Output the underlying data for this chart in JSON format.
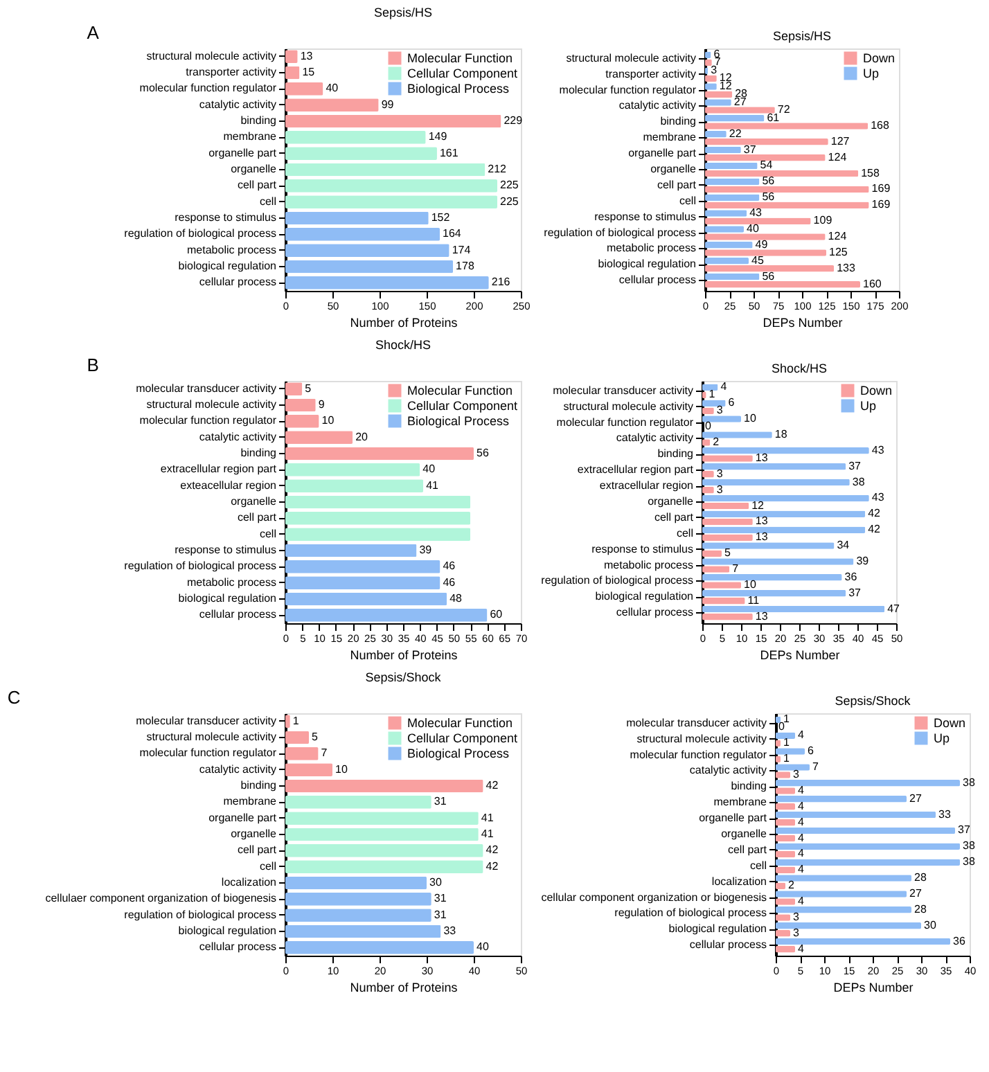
{
  "chart_data": [
    {
      "type": "bar",
      "orientation": "horizontal",
      "title": "Sepsis/HS",
      "xlabel": "Number of Proteins",
      "annotations": [
        "A"
      ],
      "categories": [
        "structural molecule activity",
        "transporter activity",
        "molecular function regulator",
        "catalytic activity",
        "binding",
        "membrane",
        "organelle part",
        "organelle",
        "cell part",
        "cell",
        "response to stimulus",
        "regulation of biological process",
        "metabolic process",
        "biological regulation",
        "cellular process"
      ],
      "series": [
        {
          "name": "Molecular Function",
          "color": "#f9a0a0",
          "values": [
            13,
            15,
            40,
            99,
            229,
            null,
            null,
            null,
            null,
            null,
            null,
            null,
            null,
            null,
            null
          ]
        },
        {
          "name": "Cellular Component",
          "color": "#b0f5da",
          "values": [
            null,
            null,
            null,
            null,
            null,
            149,
            161,
            212,
            225,
            225,
            null,
            null,
            null,
            null,
            null
          ]
        },
        {
          "name": "Biological Process",
          "color": "#8fbcf5",
          "values": [
            null,
            null,
            null,
            null,
            null,
            null,
            null,
            null,
            null,
            null,
            152,
            164,
            174,
            178,
            216
          ]
        }
      ],
      "xlim": [
        0,
        250
      ],
      "xticks": [
        0,
        50,
        100,
        150,
        200,
        250
      ],
      "data_labels": true,
      "legend": "top right",
      "grid": false
    },
    {
      "type": "bar",
      "orientation": "horizontal",
      "title": "Sepsis/HS",
      "xlabel": "DEPs Number",
      "categories": [
        "structural molecule activity",
        "transporter activity",
        "molecular function regulator",
        "catalytic activity",
        "binding",
        "membrane",
        "organelle part",
        "organelle",
        "cell part",
        "cell",
        "response to stimulus",
        "regulation of biological process",
        "metabolic process",
        "biological regulation",
        "cellular process"
      ],
      "series": [
        {
          "name": "Down",
          "color": "#f9a0a0",
          "values": [
            7,
            12,
            28,
            72,
            168,
            127,
            124,
            158,
            169,
            169,
            109,
            124,
            125,
            133,
            160
          ]
        },
        {
          "name": "Up",
          "color": "#8fbcf5",
          "values": [
            6,
            3,
            12,
            27,
            61,
            22,
            37,
            54,
            56,
            56,
            43,
            40,
            49,
            45,
            56
          ]
        }
      ],
      "xlim": [
        0,
        200
      ],
      "xticks": [
        0,
        25,
        50,
        75,
        100,
        125,
        150,
        175,
        200
      ],
      "data_labels": true,
      "legend": "top right",
      "grid": false
    },
    {
      "type": "bar",
      "orientation": "horizontal",
      "title": "Shock/HS",
      "xlabel": "Number of Proteins",
      "annotations": [
        "B"
      ],
      "categories": [
        "molecular transducer activity",
        "structural molecule activity",
        "molecular function regulator",
        "catalytic activity",
        "binding",
        "extracellular region part",
        "exteacellular region",
        "organelle",
        "cell part",
        "cell",
        "response to stimulus",
        "regulation of biological process",
        "metabolic process",
        "biological regulation",
        "cellular process"
      ],
      "series": [
        {
          "name": "Molecular Function",
          "color": "#f9a0a0",
          "values": [
            5,
            9,
            10,
            20,
            56,
            null,
            null,
            null,
            null,
            null,
            null,
            null,
            null,
            null,
            null
          ],
          "value_labels": [
            "5",
            "9",
            "10",
            "20",
            "56",
            null,
            null,
            null,
            null,
            null,
            null,
            null,
            null,
            null,
            null
          ]
        },
        {
          "name": "Cellular Component",
          "color": "#b0f5da",
          "values": [
            null,
            null,
            null,
            null,
            null,
            40,
            41,
            55,
            55,
            55,
            null,
            null,
            null,
            null,
            null
          ],
          "value_labels": [
            null,
            null,
            null,
            null,
            null,
            "40",
            "41",
            null,
            null,
            null,
            null,
            null,
            null,
            null,
            null
          ]
        },
        {
          "name": "Biological Process",
          "color": "#8fbcf5",
          "values": [
            null,
            null,
            null,
            null,
            null,
            null,
            null,
            null,
            null,
            null,
            39,
            46,
            46,
            48,
            60
          ],
          "value_labels": [
            null,
            null,
            null,
            null,
            null,
            null,
            null,
            null,
            null,
            null,
            "39",
            "46",
            "46",
            "48",
            "60"
          ]
        }
      ],
      "xlim": [
        0,
        70
      ],
      "xticks": [
        0,
        5,
        10,
        15,
        20,
        25,
        30,
        35,
        40,
        45,
        50,
        55,
        60,
        65,
        70
      ],
      "legend": "top right",
      "grid": false
    },
    {
      "type": "bar",
      "orientation": "horizontal",
      "title": "Shock/HS",
      "xlabel": "DEPs Number",
      "categories": [
        "molecular transducer activity",
        "structural molecule activity",
        "molecular function regulator",
        "catalytic activity",
        "binding",
        "extracellular region part",
        "extracellular region",
        "organelle",
        "cell part",
        "cell",
        "response to stimulus",
        "metabolic process",
        "regulation of biological process",
        "biological regulation",
        "cellular process"
      ],
      "series": [
        {
          "name": "Down",
          "color": "#f9a0a0",
          "values": [
            1,
            3,
            0,
            2,
            13,
            3,
            3,
            12,
            13,
            13,
            5,
            7,
            10,
            11,
            13
          ]
        },
        {
          "name": "Up",
          "color": "#8fbcf5",
          "values": [
            4,
            6,
            10,
            18,
            43,
            37,
            38,
            43,
            42,
            42,
            34,
            39,
            36,
            37,
            47
          ]
        }
      ],
      "xlim": [
        0,
        50
      ],
      "xticks": [
        0,
        5,
        10,
        15,
        20,
        25,
        30,
        35,
        40,
        45,
        50
      ],
      "data_labels": true,
      "legend": "top right",
      "grid": false
    },
    {
      "type": "bar",
      "orientation": "horizontal",
      "title": "Sepsis/Shock",
      "xlabel": "Number of Proteins",
      "annotations": [
        "C"
      ],
      "categories": [
        "molecular transducer activity",
        "structural molecule activity",
        "molecular function regulator",
        "catalytic activity",
        "binding",
        "membrane",
        "organelle part",
        "organelle",
        "cell part",
        "cell",
        "localization",
        "cellulaer component organization of biogenesis",
        "regulation of biological process",
        "biological regulation",
        "cellular process"
      ],
      "series": [
        {
          "name": "Molecular Function",
          "color": "#f9a0a0",
          "values": [
            1,
            5,
            7,
            10,
            42,
            null,
            null,
            null,
            null,
            null,
            null,
            null,
            null,
            null,
            null
          ]
        },
        {
          "name": "Cellular Component",
          "color": "#b0f5da",
          "values": [
            null,
            null,
            null,
            null,
            null,
            31,
            41,
            41,
            42,
            42,
            null,
            null,
            null,
            null,
            null
          ]
        },
        {
          "name": "Biological Process",
          "color": "#8fbcf5",
          "values": [
            null,
            null,
            null,
            null,
            null,
            null,
            null,
            null,
            null,
            null,
            30,
            31,
            31,
            33,
            40
          ]
        }
      ],
      "xlim": [
        0,
        50
      ],
      "xticks": [
        0,
        10,
        20,
        30,
        40,
        50
      ],
      "data_labels": true,
      "legend": "top right",
      "grid": false
    },
    {
      "type": "bar",
      "orientation": "horizontal",
      "title": "Sepsis/Shock",
      "xlabel": "DEPs Number",
      "categories": [
        "molecular transducer activity",
        "structural molecule activity",
        "molecular function regulator",
        "catalytic activity",
        "binding",
        "membrane",
        "organelle part",
        "organelle",
        "cell part",
        "cell",
        "localization",
        "cellular component organization or biogenesis",
        "regulation of biological process",
        "biological regulation",
        "cellular process"
      ],
      "series": [
        {
          "name": "Down",
          "color": "#f9a0a0",
          "values": [
            0,
            1,
            1,
            3,
            4,
            4,
            4,
            4,
            4,
            4,
            2,
            4,
            3,
            3,
            4
          ]
        },
        {
          "name": "Up",
          "color": "#8fbcf5",
          "values": [
            1,
            4,
            6,
            7,
            38,
            27,
            33,
            37,
            38,
            38,
            28,
            27,
            28,
            30,
            36
          ]
        }
      ],
      "xlim": [
        0,
        40
      ],
      "xticks": [
        0,
        5,
        10,
        15,
        20,
        25,
        30,
        35,
        40
      ],
      "data_labels": true,
      "legend": "top right",
      "grid": false
    }
  ]
}
